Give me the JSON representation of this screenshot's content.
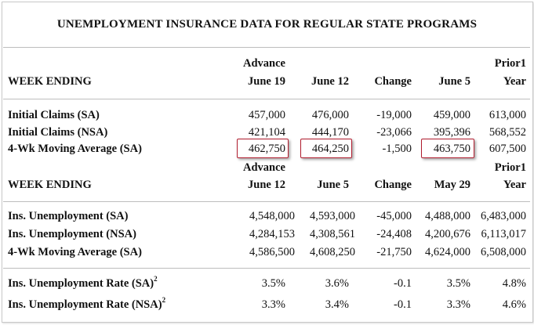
{
  "title": "UNEMPLOYMENT INSURANCE DATA FOR REGULAR STATE PROGRAMS",
  "colors": {
    "highlight_border": "#b01c2e",
    "rule_line": "#bdbdbd"
  },
  "section1": {
    "week_ending_label": "WEEK ENDING",
    "headers": [
      {
        "top": "Advance",
        "bottom": "June 19"
      },
      {
        "top": "",
        "bottom": "June 12"
      },
      {
        "top": "",
        "bottom": "Change"
      },
      {
        "top": "",
        "bottom": "June 5"
      },
      {
        "top": "Prior1",
        "bottom": "Year"
      }
    ],
    "rows": [
      {
        "label": "Initial Claims (SA)",
        "values": [
          "457,000",
          "476,000",
          "-19,000",
          "459,000",
          "613,000"
        ]
      },
      {
        "label": "Initial Claims (NSA)",
        "values": [
          "421,104",
          "444,170",
          "-23,066",
          "395,396",
          "568,552"
        ]
      },
      {
        "label": "4-Wk Moving Average (SA)",
        "values": [
          "462,750",
          "464,250",
          "-1,500",
          "463,750",
          "607,500"
        ]
      }
    ]
  },
  "section2": {
    "week_ending_label": "WEEK ENDING",
    "headers": [
      {
        "top": "Advance",
        "bottom": "June 12"
      },
      {
        "top": "",
        "bottom": "June 5"
      },
      {
        "top": "",
        "bottom": "Change"
      },
      {
        "top": "",
        "bottom": "May 29"
      },
      {
        "top": "Prior1",
        "bottom": "Year"
      }
    ],
    "rows": [
      {
        "label": "Ins. Unemployment (SA)",
        "values": [
          "4,548,000",
          "4,593,000",
          "-45,000",
          "4,488,000",
          "6,483,000"
        ]
      },
      {
        "label": "Ins. Unemployment (NSA)",
        "values": [
          "4,284,153",
          "4,308,561",
          "-24,408",
          "4,200,676",
          "6,113,017"
        ]
      },
      {
        "label": "4-Wk Moving Average (SA)",
        "values": [
          "4,586,500",
          "4,608,250",
          "-21,750",
          "4,624,000",
          "6,508,000"
        ]
      }
    ]
  },
  "section3": {
    "rows": [
      {
        "label": "Ins. Unemployment Rate (SA)",
        "sup": "2",
        "values": [
          "3.5%",
          "3.6%",
          "-0.1",
          "3.5%",
          "4.8%"
        ]
      },
      {
        "label": "Ins. Unemployment Rate (NSA)",
        "sup": "2",
        "values": [
          "3.3%",
          "3.4%",
          "-0.1",
          "3.3%",
          "4.6%"
        ]
      }
    ]
  }
}
